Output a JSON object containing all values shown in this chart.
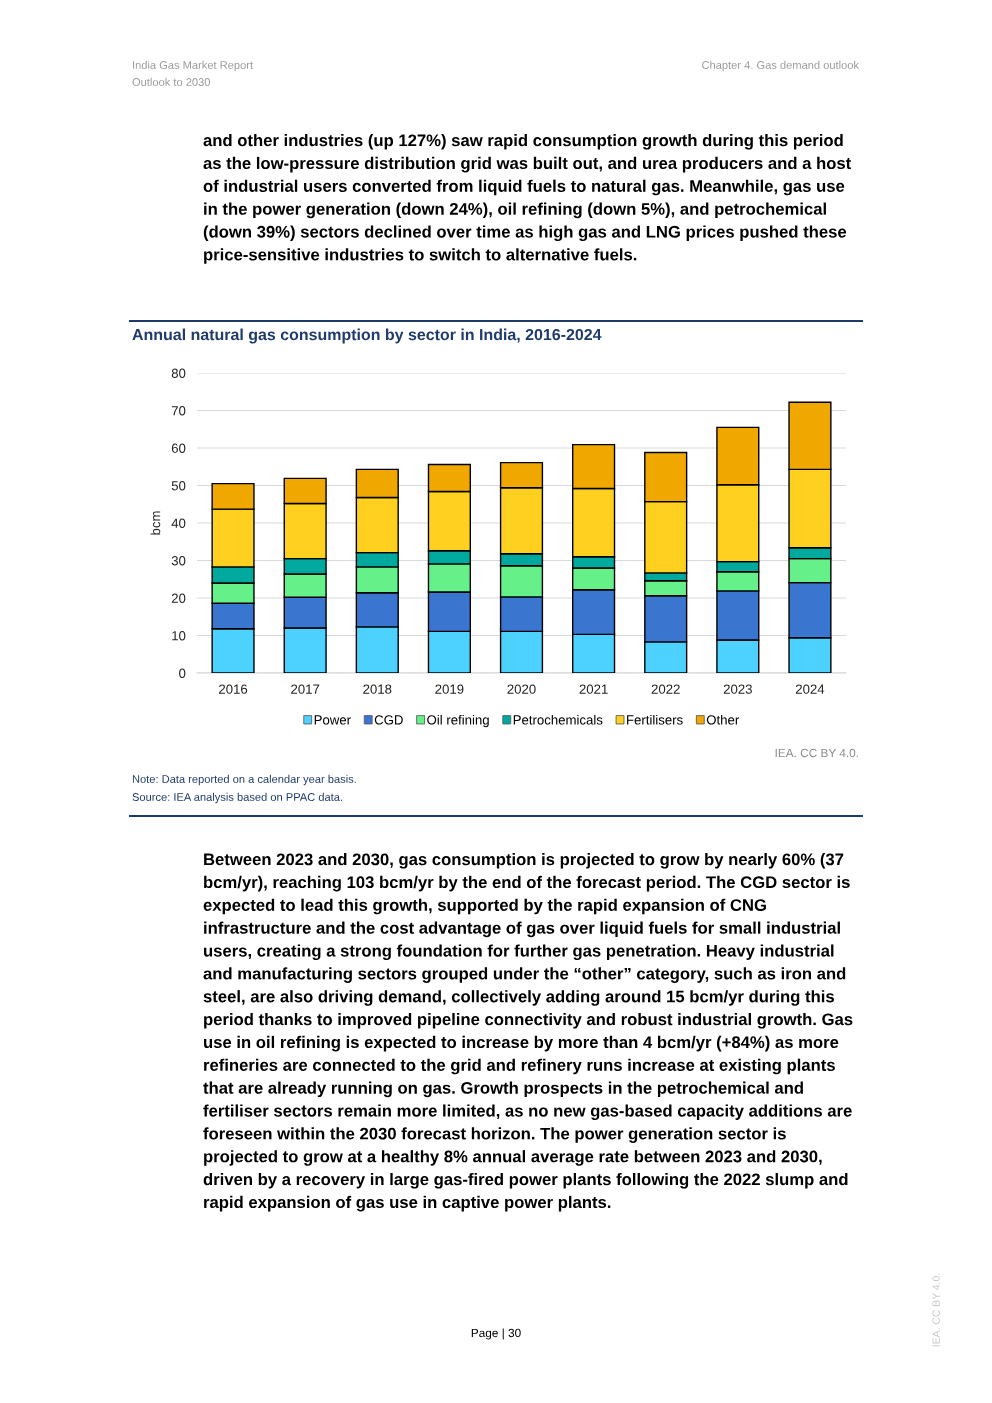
{
  "chart_data": {
    "type": "bar",
    "stacked": true,
    "title": "Annual natural gas consumption by sector in India, 2016-2024",
    "ylabel": "bcm",
    "categories": [
      "2016",
      "2017",
      "2018",
      "2019",
      "2020",
      "2021",
      "2022",
      "2023",
      "2024"
    ],
    "series": [
      {
        "name": "Power",
        "color": "#4dd2ff",
        "values": [
          11.8,
          12.0,
          12.3,
          11.1,
          11.1,
          10.3,
          8.3,
          8.8,
          9.4
        ]
      },
      {
        "name": "CGD",
        "color": "#3a75d0",
        "values": [
          6.8,
          8.2,
          9.1,
          10.5,
          9.2,
          11.9,
          12.3,
          13.1,
          14.7
        ]
      },
      {
        "name": "Oil refining",
        "color": "#66f08a",
        "values": [
          5.4,
          6.2,
          6.9,
          7.5,
          8.3,
          5.8,
          4.0,
          5.1,
          6.4
        ]
      },
      {
        "name": "Petrochemicals",
        "color": "#00a99d",
        "values": [
          4.3,
          4.1,
          3.8,
          3.5,
          3.2,
          3.0,
          2.1,
          2.7,
          2.9
        ]
      },
      {
        "name": "Fertilisers",
        "color": "#ffd020",
        "values": [
          15.4,
          14.7,
          14.7,
          15.8,
          17.6,
          18.2,
          19.0,
          20.5,
          20.9
        ]
      },
      {
        "name": "Other",
        "color": "#f0a800",
        "values": [
          6.8,
          6.7,
          7.5,
          7.2,
          6.7,
          11.7,
          13.1,
          15.3,
          17.9
        ]
      }
    ],
    "ylim": [
      0,
      80
    ],
    "yticks": [
      0,
      10,
      20,
      30,
      40,
      50,
      60,
      70,
      80
    ],
    "grid": "y",
    "legend": "bottom",
    "annotations": [
      "India Gas Market Report",
      "Outlook to 2030",
      "Chapter 4. Gas demand outlook",
      "and other industries (up 127%) saw rapid consumption growth during this period as the low-pressure distribution grid was built out, and urea producers and a host of industrial users converted from liquid fuels to natural gas. Meanwhile, gas use in the power generation (down 24%), oil refining (down 5%), and petrochemical (down 39%) sectors declined over time as high gas and LNG prices pushed these price-sensitive industries to switch to alternative fuels.",
      "IEA. CC BY 4.0.",
      "Note: Data reported on a calendar year basis.",
      "Source: IEA analysis based on PPAC data.",
      "Between 2023 and 2030, gas consumption is projected to grow by nearly 60% (37 bcm/yr), reaching 103 bcm/yr by the end of the forecast period. The CGD sector is expected to lead this growth, supported by the rapid expansion of CNG infrastructure and the cost advantage of gas over liquid fuels for small industrial users, creating a strong foundation for further gas penetration. Heavy industrial and manufacturing sectors grouped under the “other” category, such as iron and steel, are also driving demand, collectively adding around 15 bcm/yr during this period thanks to improved pipeline connectivity and robust industrial growth. Gas use in oil refining is expected to increase by more than 4 bcm/yr (+84%) as more refineries are connected to the grid and refinery runs increase at existing plants that are already running on gas. Growth prospects in the petrochemical and fertiliser sectors remain more limited, as no new gas-based capacity additions are foreseen within the 2030 forecast horizon. The power generation sector is projected to grow at a healthy 8% annual average rate between 2023 and 2030, driven by a recovery in large gas-fired power plants following the 2022 slump and rapid expansion of gas use in captive power plants.",
      "Page | 30",
      "IEA. CC BY 4.0."
    ]
  }
}
